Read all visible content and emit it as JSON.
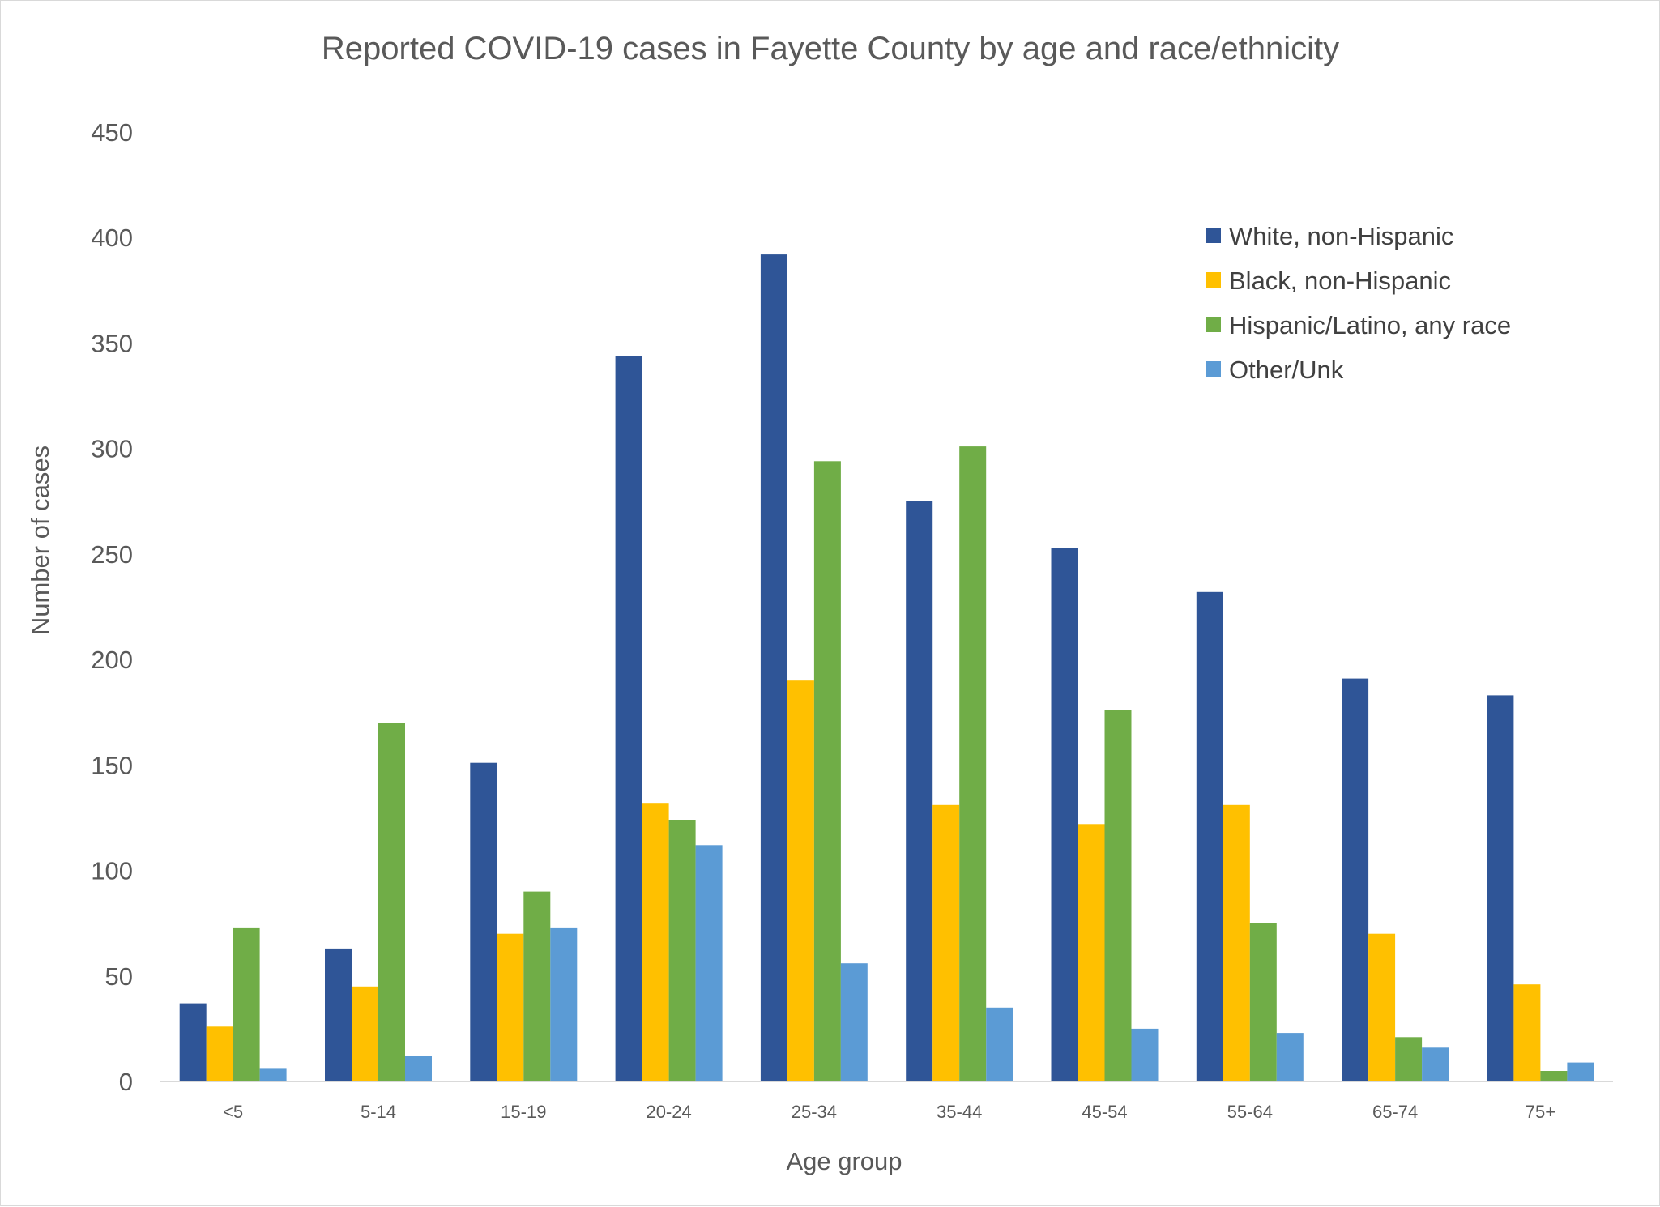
{
  "chart_data": {
    "type": "bar",
    "title": "Reported COVID-19 cases in Fayette County by age and race/ethnicity",
    "xlabel": "Age group",
    "ylabel": "Number of cases",
    "ylim": [
      0,
      450
    ],
    "yticks": [
      0,
      50,
      100,
      150,
      200,
      250,
      300,
      350,
      400,
      450
    ],
    "grid": false,
    "legend_position": "top-right",
    "categories": [
      "<5",
      "5-14",
      "15-19",
      "20-24",
      "25-34",
      "35-44",
      "45-54",
      "55-64",
      "65-74",
      "75+"
    ],
    "series": [
      {
        "name": "White, non-Hispanic",
        "color": "#2f5597",
        "values": [
          37,
          63,
          151,
          344,
          392,
          275,
          253,
          232,
          191,
          183
        ]
      },
      {
        "name": "Black, non-Hispanic",
        "color": "#ffc000",
        "values": [
          26,
          45,
          70,
          132,
          190,
          131,
          122,
          131,
          70,
          46
        ]
      },
      {
        "name": "Hispanic/Latino, any race",
        "color": "#70ad47",
        "values": [
          73,
          170,
          90,
          124,
          294,
          301,
          176,
          75,
          21,
          5
        ]
      },
      {
        "name": "Other/Unk",
        "color": "#5b9bd5",
        "values": [
          6,
          12,
          73,
          112,
          56,
          35,
          25,
          23,
          16,
          9
        ]
      }
    ]
  }
}
